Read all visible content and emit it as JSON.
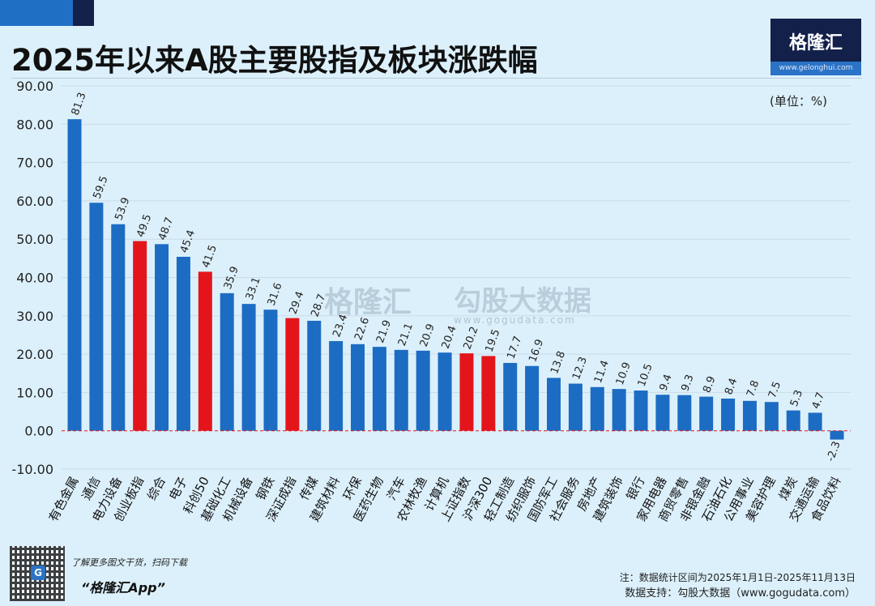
{
  "title": "2025年以来A股主要股指及板块涨跌幅",
  "logo": {
    "name": "格隆汇",
    "url": "www.gelonghui.com"
  },
  "unit": "(单位：%)",
  "watermark": {
    "left": "格隆汇",
    "right": "勾股大数据",
    "right_url": "www.gogudata.com"
  },
  "footer": {
    "promo": "了解更多图文干货，扫码下载",
    "app": "“格隆汇App”",
    "note": "注：数据统计区间为2025年1月1日-2025年11月13日",
    "source": "数据支持：勾股大数据（www.gogudata.com）"
  },
  "colors": {
    "sector": "#1c6cc3",
    "index": "#e3151b",
    "zero_line": "#e3151b"
  },
  "chart_data": {
    "type": "bar",
    "ylim": [
      -10,
      90
    ],
    "yticks": [
      "90.00",
      "80.00",
      "70.00",
      "60.00",
      "50.00",
      "40.00",
      "30.00",
      "20.00",
      "10.00",
      "0.00",
      "-10.00"
    ],
    "grid": true,
    "categories": [
      "有色金属",
      "通信",
      "电力设备",
      "创业板指",
      "综合",
      "电子",
      "科创50",
      "基础化工",
      "机械设备",
      "钢铁",
      "深证成指",
      "传媒",
      "建筑材料",
      "环保",
      "医药生物",
      "汽车",
      "农林牧渔",
      "计算机",
      "上证指数",
      "沪深300",
      "轻工制造",
      "纺织服饰",
      "国防军工",
      "社会服务",
      "房地产",
      "建筑装饰",
      "银行",
      "家用电器",
      "商贸零售",
      "非银金融",
      "石油石化",
      "公用事业",
      "美容护理",
      "煤炭",
      "交通运输",
      "食品饮料"
    ],
    "values": [
      81.3,
      59.5,
      53.9,
      49.5,
      48.7,
      45.4,
      41.5,
      35.9,
      33.1,
      31.6,
      29.4,
      28.7,
      23.4,
      22.6,
      21.9,
      21.1,
      20.9,
      20.4,
      20.2,
      19.5,
      17.7,
      16.9,
      13.8,
      12.3,
      11.4,
      10.9,
      10.5,
      9.4,
      9.3,
      8.9,
      8.4,
      7.8,
      7.5,
      5.3,
      4.7,
      -2.3
    ],
    "highlight": [
      "创业板指",
      "科创50",
      "深证成指",
      "上证指数",
      "沪深300"
    ]
  }
}
